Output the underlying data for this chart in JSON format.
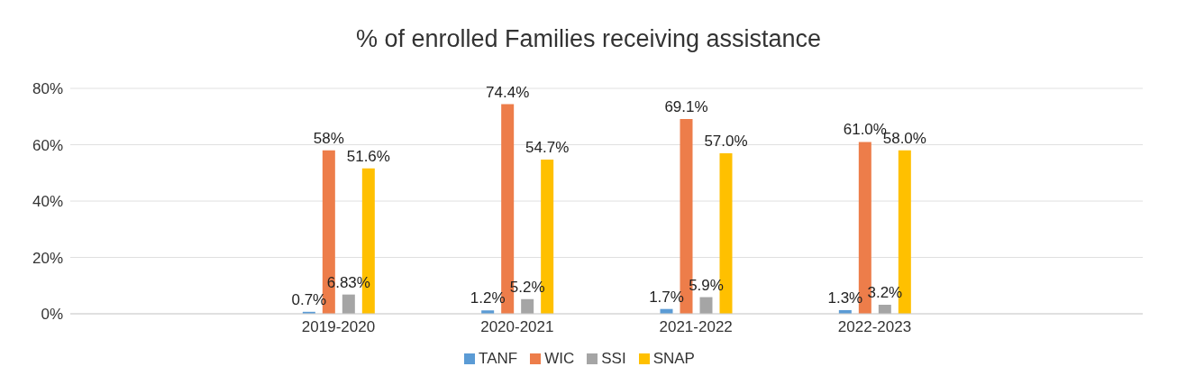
{
  "chart_data": {
    "type": "bar",
    "title": "% of enrolled Families receiving assistance",
    "categories": [
      null,
      "2019-2020",
      "2020-2021",
      "2021-2022",
      "2022-2023",
      null
    ],
    "series": [
      {
        "name": "TANF",
        "color": "#5b9bd5",
        "values": [
          null,
          0.7,
          1.2,
          1.7,
          1.3,
          null
        ],
        "value_labels": [
          null,
          "0.7%",
          "1.2%",
          "1.7%",
          "1.3%",
          null
        ]
      },
      {
        "name": "WIC",
        "color": "#ed7d4a",
        "values": [
          null,
          58,
          74.4,
          69.1,
          61.0,
          null
        ],
        "value_labels": [
          null,
          "58%",
          "74.4%",
          "69.1%",
          "61.0%",
          null
        ]
      },
      {
        "name": "SSI",
        "color": "#a5a5a5",
        "values": [
          null,
          6.83,
          5.2,
          5.9,
          3.2,
          null
        ],
        "value_labels": [
          null,
          "6.83%",
          "5.2%",
          "5.9%",
          "3.2%",
          null
        ]
      },
      {
        "name": "SNAP",
        "color": "#ffc000",
        "values": [
          null,
          51.6,
          54.7,
          57.0,
          58.0,
          null
        ],
        "value_labels": [
          null,
          "51.6%",
          "54.7%",
          "57.0%",
          "58.0%",
          null
        ]
      }
    ],
    "ylim": [
      0,
      80
    ],
    "yticks": [
      {
        "value": 0,
        "label": "0%"
      },
      {
        "value": 20,
        "label": "20%"
      },
      {
        "value": 40,
        "label": "40%"
      },
      {
        "value": 60,
        "label": "60%"
      },
      {
        "value": 80,
        "label": "80%"
      }
    ],
    "grid": "y",
    "legend": "bottom"
  }
}
